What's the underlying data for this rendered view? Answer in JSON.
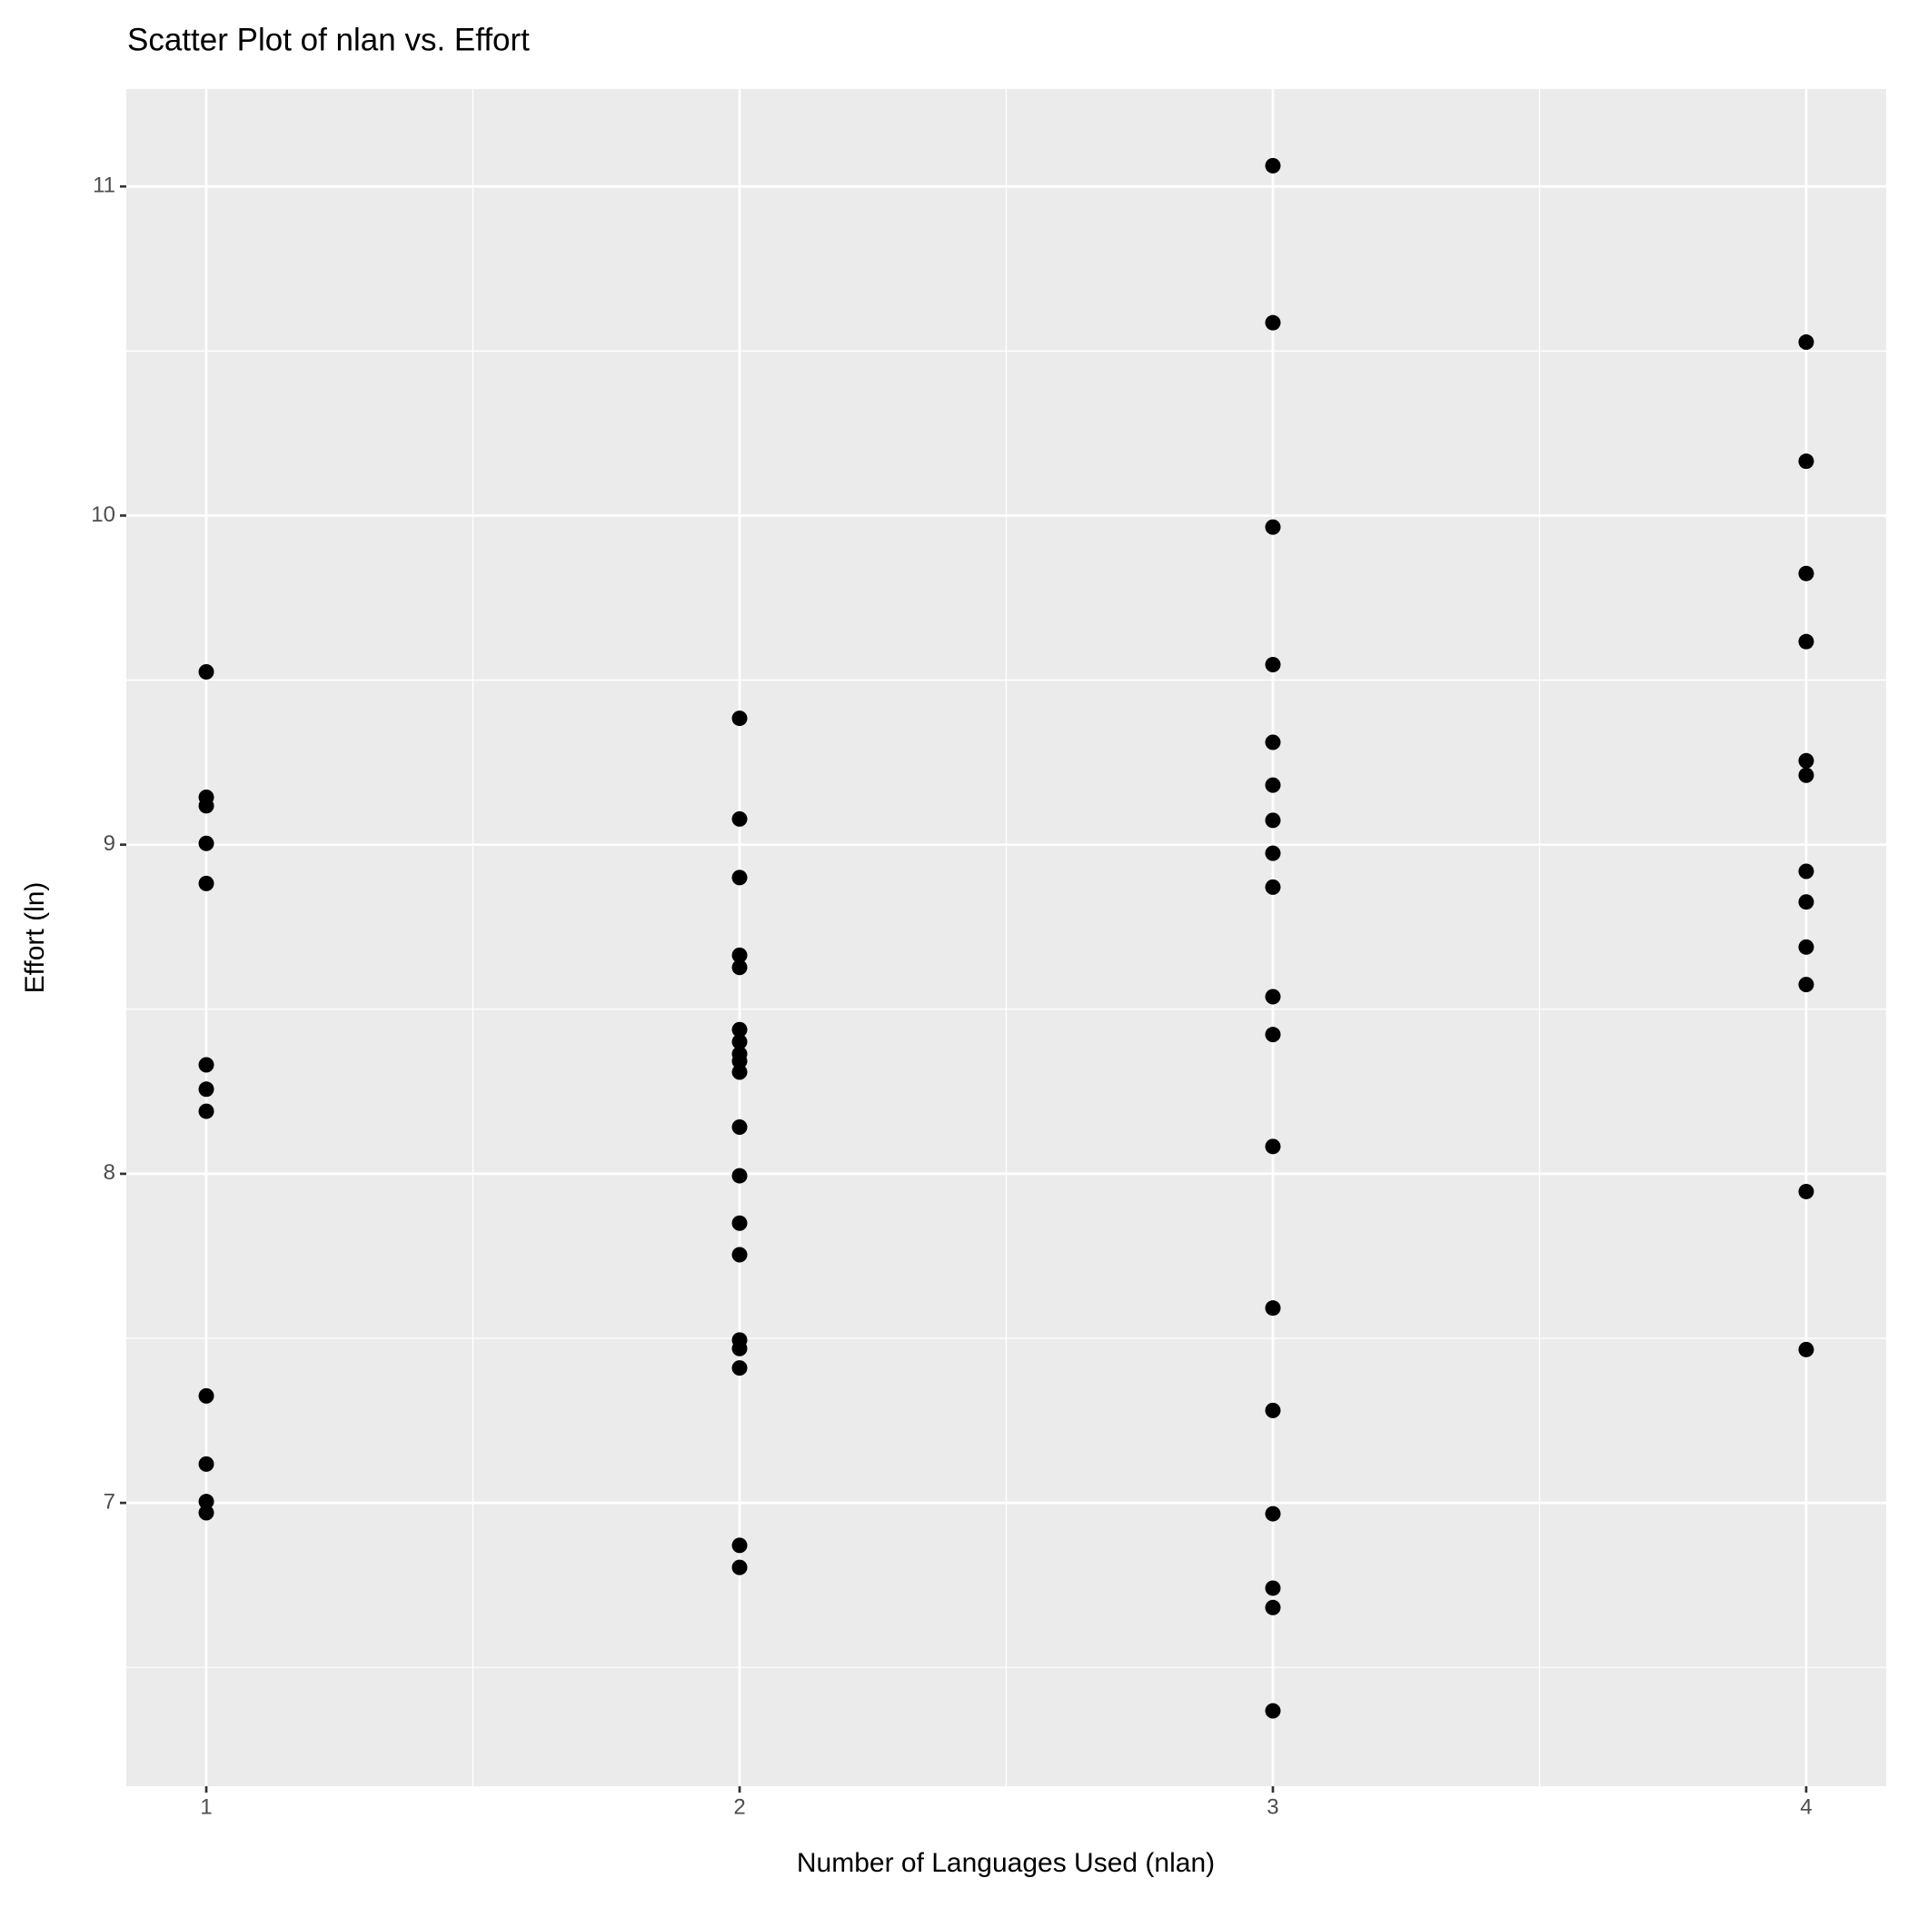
{
  "chart_data": {
    "type": "scatter",
    "title": "Scatter Plot of nlan vs. Effort",
    "x_label": "Number of Languages Used (nlan)",
    "y_label": "Effort (ln)",
    "color": "#000000",
    "grid": true,
    "xlim": [
      0.85,
      4.15
    ],
    "ylim": [
      6.139,
      11.296
    ],
    "xticks": [
      1,
      2,
      3,
      4
    ],
    "yticks": [
      7,
      8,
      9,
      10,
      11
    ],
    "x": [
      1,
      1,
      1,
      1,
      1,
      1,
      1,
      1,
      1,
      1,
      1,
      1,
      2,
      2,
      2,
      2,
      2,
      2,
      2,
      2,
      2,
      2,
      2,
      2,
      2,
      2,
      2,
      2,
      2,
      2,
      2,
      3,
      3,
      3,
      3,
      3,
      3,
      3,
      3,
      3,
      3,
      3,
      3,
      3,
      3,
      3,
      3,
      3,
      3,
      4,
      4,
      4,
      4,
      4,
      4,
      4,
      4,
      4,
      4,
      4,
      4
    ],
    "values": [
      9.525,
      9.144,
      9.118,
      9.004,
      8.882,
      8.331,
      8.257,
      8.19,
      7.325,
      7.118,
      7.004,
      6.97,
      9.384,
      9.078,
      8.9,
      8.664,
      8.627,
      8.438,
      8.401,
      8.364,
      8.342,
      8.309,
      8.142,
      7.994,
      7.85,
      7.754,
      7.495,
      7.469,
      7.41,
      6.871,
      6.804,
      11.063,
      10.586,
      9.965,
      9.547,
      9.311,
      9.181,
      9.074,
      8.974,
      8.871,
      8.538,
      8.423,
      8.083,
      7.592,
      7.281,
      6.967,
      6.741,
      6.682,
      6.368,
      10.527,
      10.165,
      9.824,
      9.617,
      9.255,
      9.211,
      8.919,
      8.826,
      8.689,
      8.575,
      7.946,
      7.466
    ]
  }
}
